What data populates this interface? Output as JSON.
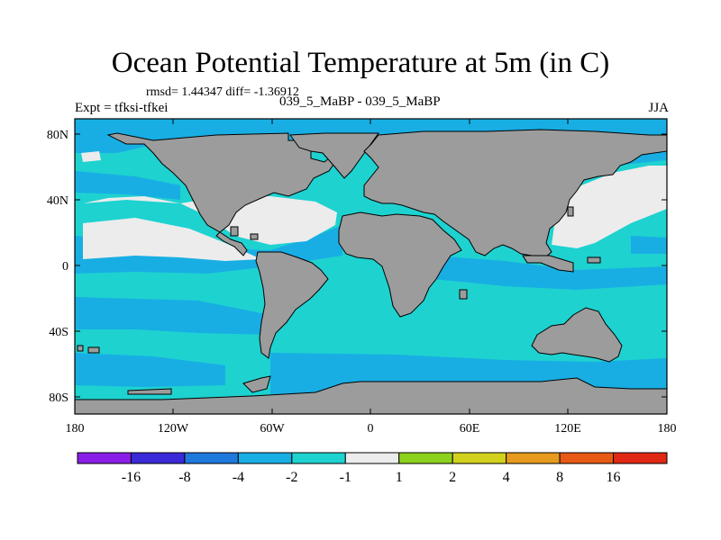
{
  "title": "Ocean Potential Temperature at 5m (in C)",
  "stats": "rmsd= 1.44347 diff= -1.36912",
  "experiment": "Expt = tfksi-tfkei",
  "case": "039_5_MaBP - 039_5_MaBP",
  "season": "JJA",
  "y_ticks": [
    "80N",
    "40N",
    "0",
    "40S",
    "80S"
  ],
  "x_ticks": [
    "180",
    "120W",
    "60W",
    "0",
    "60E",
    "120E",
    "180"
  ],
  "colorbar": {
    "labels": [
      "-16",
      "-8",
      "-4",
      "-2",
      "-1",
      "1",
      "2",
      "4",
      "8",
      "16"
    ],
    "colors": [
      "#8a1ee8",
      "#3a2ad8",
      "#1f78dc",
      "#18aee4",
      "#1ed2d0",
      "#ececec",
      "#8cd21e",
      "#d2d21e",
      "#e69a1e",
      "#e65a14",
      "#e02814"
    ]
  },
  "fill_colors": {
    "land": "#9c9c9c",
    "ocean_default": "#1ed2d0",
    "ocean_cooler": "#18aee4",
    "near_zero": "#ececec"
  }
}
